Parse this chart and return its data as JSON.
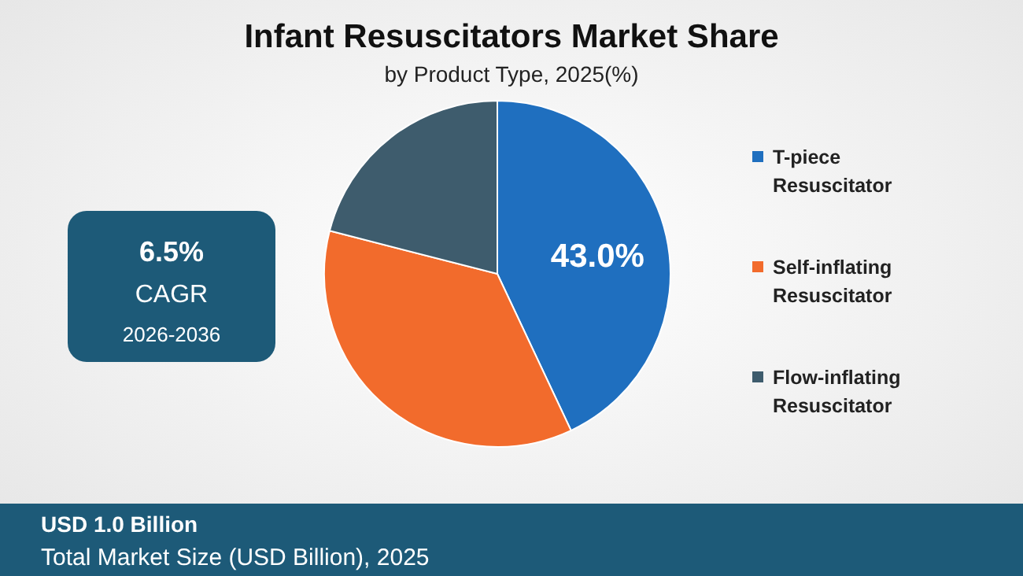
{
  "chart_data": {
    "type": "pie",
    "title": "Infant Resuscitators Market Share",
    "subtitle": "by Product Type, 2025(%)",
    "categories": [
      "T-piece Resuscitator",
      "Self-inflating Resuscitator",
      "Flow-inflating Resuscitator"
    ],
    "values": [
      43.0,
      36,
      21
    ],
    "colors": [
      "#1f6fbf",
      "#f26b2c",
      "#3e5c6d"
    ],
    "value_labels": [
      "43.0%",
      null,
      null
    ],
    "legend": "right",
    "annotations": [
      "6.5%",
      "CAGR",
      "2026-2036",
      "USD 1.0 Billion",
      "Total Market Size (USD Billion), 2025"
    ]
  }
}
